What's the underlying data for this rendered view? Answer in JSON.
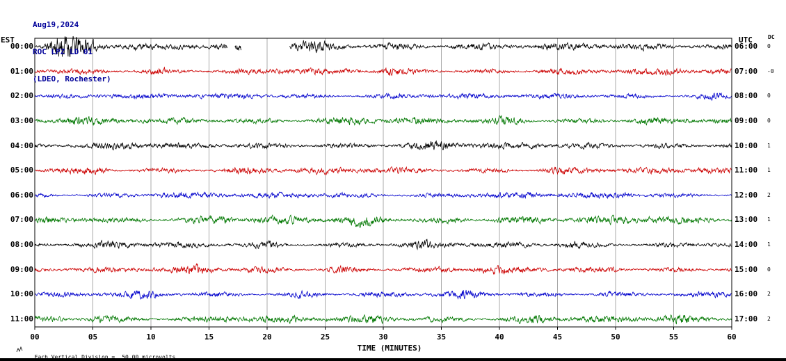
{
  "header": {
    "date": "Aug19,2024",
    "station": "ROC LPZ LD 01",
    "location": "(LDEO, Rochester)"
  },
  "axis": {
    "left_tz": "EST",
    "right_tz": "UTC",
    "dc_label": "DC",
    "xlabel": "TIME (MINUTES)",
    "x_ticks": [
      "00",
      "05",
      "10",
      "15",
      "20",
      "25",
      "30",
      "35",
      "40",
      "45",
      "50",
      "55",
      "60"
    ]
  },
  "footer": {
    "scale_text": "Each Vertical Division =",
    "scale_value": "50.00 microvolts"
  },
  "chart_data": {
    "type": "line",
    "title": "ROC LPZ LD 01 (LDEO, Rochester) helicorder Aug19,2024",
    "x_range_minutes": [
      0,
      60
    ],
    "minutes_per_row": 60,
    "points_per_minute": 30,
    "vertical_division_microvolts": 50.0,
    "grid_interval_minutes": 5,
    "row_colors_cycle": [
      "#000000",
      "#cc0000",
      "#0000cc",
      "#007700"
    ],
    "traces": [
      {
        "est": "00:00",
        "utc": "06:00",
        "dc": "0",
        "color": "#000000",
        "amp": 1.1,
        "seed": 11,
        "bursts": [
          [
            1.7,
            0.7,
            3.3
          ],
          [
            3.4,
            1.1,
            2.9
          ],
          [
            5.7,
            1.4,
            2.1
          ],
          [
            8.3,
            0.7,
            2.0
          ],
          [
            13.2,
            0.5,
            1.9
          ],
          [
            23.6,
            1.4,
            1.8
          ],
          [
            31.0,
            1.0,
            1.6
          ],
          [
            36.4,
            1.2,
            1.5
          ]
        ],
        "gaps": [
          [
            16.6,
            17.2
          ],
          [
            17.8,
            21.9
          ]
        ]
      },
      {
        "est": "01:00",
        "utc": "07:00",
        "dc": "-0",
        "color": "#cc0000",
        "amp": 0.95,
        "seed": 23,
        "bursts": [
          [
            10.4,
            0.9,
            1.7
          ],
          [
            21.2,
            1.1,
            1.6
          ],
          [
            30.6,
            0.8,
            1.7
          ],
          [
            44.3,
            1.0,
            1.5
          ],
          [
            55.1,
            0.9,
            1.6
          ]
        ],
        "gaps": []
      },
      {
        "est": "02:00",
        "utc": "08:00",
        "dc": "0",
        "color": "#0000cc",
        "amp": 0.9,
        "seed": 37,
        "bursts": [
          [
            6.2,
            0.9,
            1.6
          ],
          [
            19.4,
            1.0,
            1.5
          ],
          [
            33.1,
            1.1,
            1.6
          ],
          [
            47.2,
            0.9,
            1.5
          ],
          [
            58.0,
            0.7,
            1.5
          ]
        ],
        "gaps": []
      },
      {
        "est": "03:00",
        "utc": "09:00",
        "dc": "0",
        "color": "#007700",
        "amp": 1.1,
        "seed": 41,
        "bursts": [
          [
            3.1,
            0.8,
            1.7
          ],
          [
            15.3,
            1.0,
            1.6
          ],
          [
            27.4,
            1.2,
            1.6
          ],
          [
            41.0,
            0.9,
            1.7
          ],
          [
            52.3,
            1.0,
            1.6
          ]
        ],
        "gaps": []
      },
      {
        "est": "04:00",
        "utc": "10:00",
        "dc": "1",
        "color": "#000000",
        "amp": 1.0,
        "seed": 53,
        "bursts": [
          [
            8.1,
            0.9,
            1.7
          ],
          [
            22.3,
            1.0,
            1.6
          ],
          [
            35.2,
            1.3,
            1.8
          ],
          [
            43.6,
            0.8,
            1.6
          ],
          [
            50.4,
            1.1,
            1.7
          ]
        ],
        "gaps": []
      },
      {
        "est": "05:00",
        "utc": "11:00",
        "dc": "1",
        "color": "#cc0000",
        "amp": 1.0,
        "seed": 67,
        "bursts": [
          [
            5.3,
            0.8,
            1.6
          ],
          [
            18.2,
            1.0,
            1.7
          ],
          [
            29.4,
            1.0,
            1.6
          ],
          [
            44.6,
            1.0,
            1.6
          ],
          [
            57.2,
            0.8,
            1.6
          ]
        ],
        "gaps": []
      },
      {
        "est": "06:00",
        "utc": "12:00",
        "dc": "2",
        "color": "#0000cc",
        "amp": 0.95,
        "seed": 71,
        "bursts": [
          [
            11.2,
            0.9,
            1.6
          ],
          [
            24.3,
            1.0,
            1.5
          ],
          [
            38.4,
            1.1,
            1.6
          ],
          [
            51.3,
            0.9,
            1.6
          ]
        ],
        "gaps": []
      },
      {
        "est": "07:00",
        "utc": "13:00",
        "dc": "1",
        "color": "#007700",
        "amp": 1.25,
        "seed": 83,
        "bursts": [
          [
            4.2,
            0.9,
            1.6
          ],
          [
            16.3,
            1.1,
            1.6
          ],
          [
            28.2,
            1.2,
            1.7
          ],
          [
            40.4,
            1.0,
            1.6
          ],
          [
            53.2,
            1.1,
            1.6
          ]
        ],
        "gaps": []
      },
      {
        "est": "08:00",
        "utc": "14:00",
        "dc": "1",
        "color": "#000000",
        "amp": 0.95,
        "seed": 97,
        "bursts": [
          [
            7.3,
            0.9,
            1.6
          ],
          [
            20.2,
            1.0,
            1.6
          ],
          [
            33.4,
            1.0,
            1.6
          ],
          [
            46.3,
            1.0,
            1.7
          ],
          [
            58.1,
            0.7,
            1.5
          ]
        ],
        "gaps": []
      },
      {
        "est": "09:00",
        "utc": "15:00",
        "dc": "0",
        "color": "#cc0000",
        "amp": 1.0,
        "seed": 103,
        "bursts": [
          [
            2.4,
            0.8,
            1.6
          ],
          [
            14.2,
            1.0,
            1.6
          ],
          [
            26.3,
            1.0,
            1.6
          ],
          [
            39.2,
            1.0,
            1.6
          ],
          [
            50.3,
            1.0,
            1.6
          ]
        ],
        "gaps": []
      },
      {
        "est": "10:00",
        "utc": "16:00",
        "dc": "2",
        "color": "#0000cc",
        "amp": 0.9,
        "seed": 113,
        "bursts": [
          [
            9.2,
            0.9,
            1.6
          ],
          [
            23.4,
            1.0,
            1.6
          ],
          [
            37.3,
            1.0,
            1.6
          ],
          [
            49.2,
            1.0,
            1.6
          ]
        ],
        "gaps": []
      },
      {
        "est": "11:00",
        "utc": "17:00",
        "dc": "2",
        "color": "#007700",
        "amp": 1.15,
        "seed": 127,
        "bursts": [
          [
            5.4,
            0.9,
            1.6
          ],
          [
            17.2,
            1.0,
            1.6
          ],
          [
            30.3,
            1.1,
            1.6
          ],
          [
            43.4,
            1.0,
            1.6
          ],
          [
            55.3,
            1.0,
            1.6
          ]
        ],
        "gaps": []
      }
    ]
  }
}
